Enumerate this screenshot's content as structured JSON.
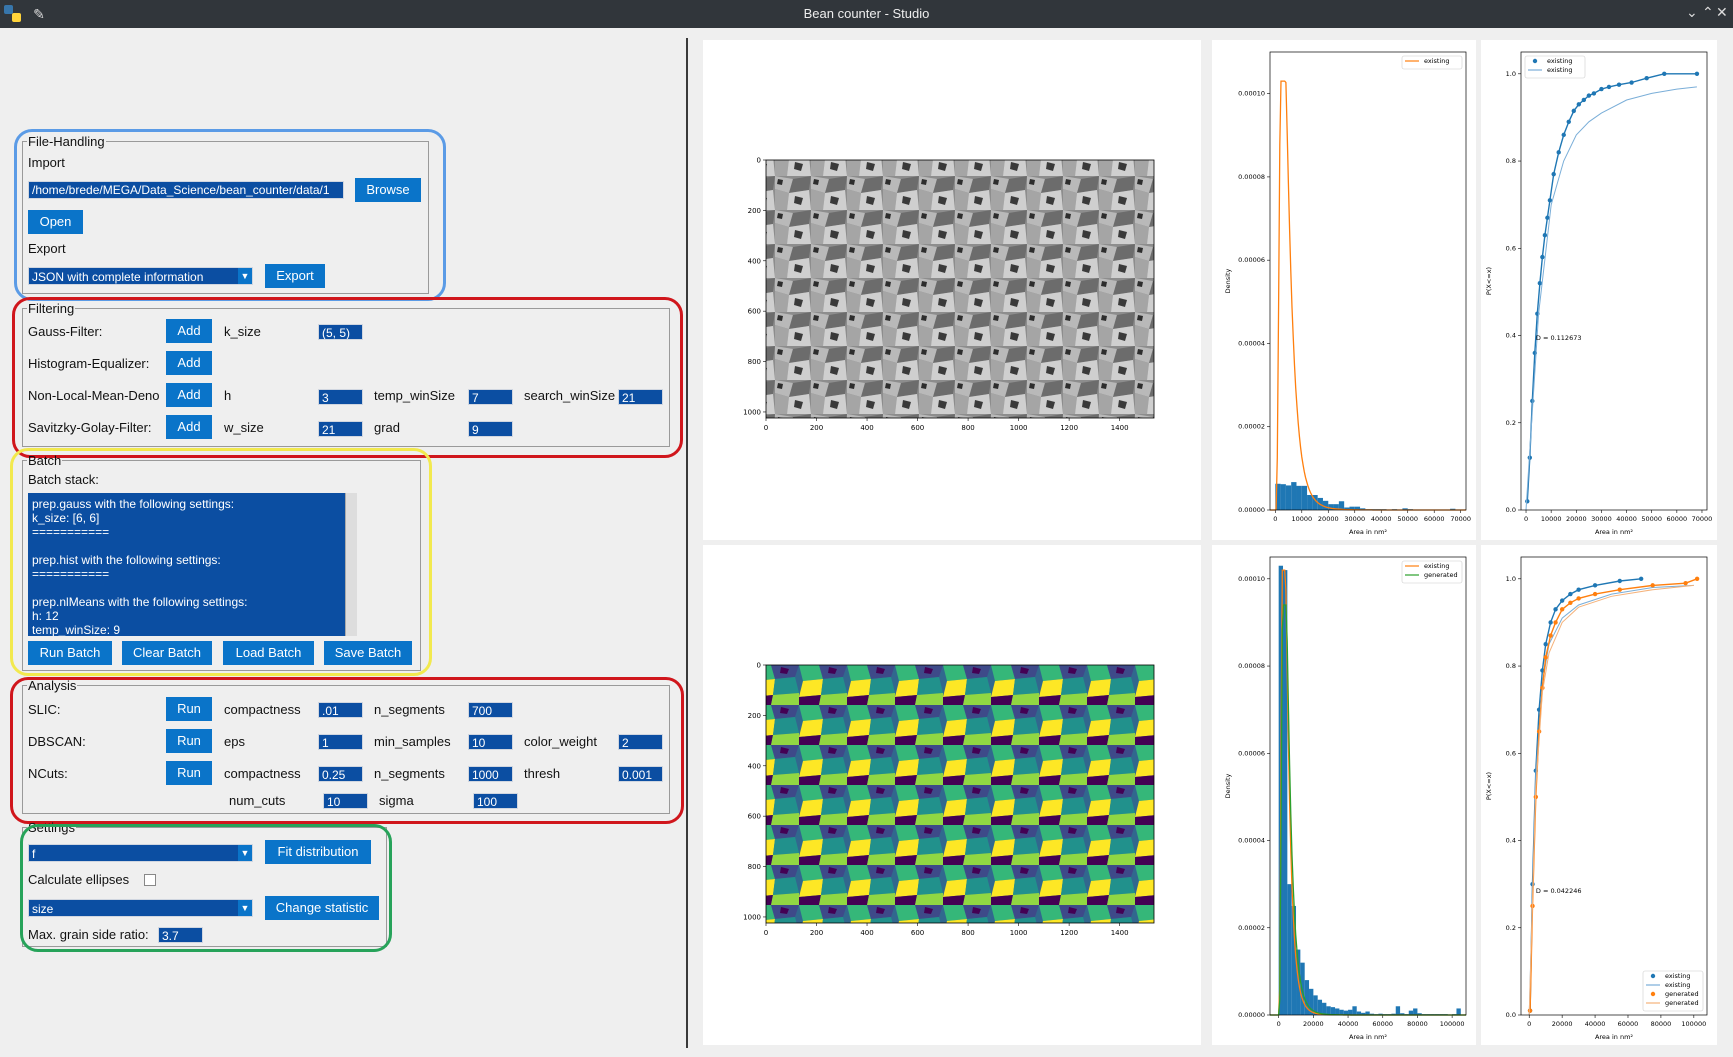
{
  "window": {
    "title": "Bean counter - Studio",
    "buttons": [
      "⌄",
      "⌃",
      "✕"
    ]
  },
  "file_handling": {
    "legend": "File-Handling",
    "import_label": "Import",
    "path_value": "/home/brede/MEGA/Data_Science/bean_counter/data/1",
    "browse": "Browse",
    "open": "Open",
    "export_label": "Export",
    "export_format": "JSON with complete information",
    "export": "Export"
  },
  "filtering": {
    "legend": "Filtering",
    "rows": [
      {
        "label": "Gauss-Filter:",
        "button": "Add",
        "p1": "k_size",
        "v1": "(5, 5)"
      },
      {
        "label": "Histogram-Equalizer:",
        "button": "Add"
      },
      {
        "label": "Non-Local-Mean-Deno",
        "button": "Add",
        "p1": "h",
        "v1": "3",
        "p2": "temp_winSize",
        "v2": "7",
        "p3": "search_winSize",
        "v3": "21"
      },
      {
        "label": "Savitzky-Golay-Filter:",
        "button": "Add",
        "p1": "w_size",
        "v1": "21",
        "p2": "grad",
        "v2": "9"
      }
    ]
  },
  "batch": {
    "legend": "Batch",
    "stack_label": "Batch stack:",
    "stack_text": "prep.gauss with the following settings:\nk_size: [6, 6]\n===========\n\nprep.hist with the following settings:\n===========\n\nprep.nlMeans with the following settings:\nh: 12\ntemp_winSize: 9",
    "run": "Run Batch",
    "clear": "Clear Batch",
    "load": "Load Batch",
    "save": "Save Batch"
  },
  "analysis": {
    "legend": "Analysis",
    "slic": {
      "label": "SLIC:",
      "button": "Run",
      "p1": "compactness",
      "v1": ".01",
      "p2": "n_segments",
      "v2": "700"
    },
    "dbscan": {
      "label": "DBSCAN:",
      "button": "Run",
      "p1": "eps",
      "v1": "1",
      "p2": "min_samples",
      "v2": "10",
      "p3": "color_weight",
      "v3": "2"
    },
    "ncuts": {
      "label": "NCuts:",
      "button": "Run",
      "p1": "compactness",
      "v1": "0.25",
      "p2": "n_segments",
      "v2": "1000",
      "p3": "thresh",
      "v3": "0.001",
      "p4": "num_cuts",
      "v4": "10",
      "p5": "sigma",
      "v5": "100"
    }
  },
  "settings": {
    "legend": "Settings",
    "dist_value": "f",
    "fit": "Fit distribution",
    "ellipses_label": "Calculate ellipses",
    "ellipses_checked": false,
    "stat_value": "size",
    "change_stat": "Change statistic",
    "ratio_label": "Max. grain side ratio:",
    "ratio_value": "3.7"
  },
  "colors": {
    "orange": "#ff7f0e",
    "blue": "#1f77b4",
    "green": "#2ca02c",
    "button": "#0a74c9",
    "field": "#0b4ea2"
  },
  "image_top": {
    "xticks": [
      "0",
      "200",
      "400",
      "600",
      "800",
      "1000",
      "1200",
      "1400"
    ],
    "yticks": [
      "0",
      "200",
      "400",
      "600",
      "800",
      "1000"
    ]
  },
  "image_bottom": {
    "xticks": [
      "0",
      "200",
      "400",
      "600",
      "800",
      "1000",
      "1200",
      "1400"
    ],
    "yticks": [
      "0",
      "200",
      "400",
      "600",
      "800",
      "1000"
    ]
  },
  "chart_data": [
    {
      "type": "bar",
      "id": "hist-top",
      "xlabel": "Area in nm²",
      "ylabel": "Density",
      "xlim": [
        -2000,
        72000
      ],
      "ylim": [
        0,
        0.00011
      ],
      "xticks": [
        "0",
        "10000",
        "20000",
        "30000",
        "40000",
        "50000",
        "60000",
        "70000"
      ],
      "yticks": [
        "0.00000",
        "0.00002",
        "0.00004",
        "0.00006",
        "0.00008",
        "0.00010"
      ],
      "legend": [
        "existing"
      ],
      "bin_edges": [
        0,
        2000,
        4000,
        6000,
        8000,
        10000,
        12000,
        14000,
        16000,
        18000,
        20000,
        22000,
        24000,
        26000,
        28000,
        30000,
        32000,
        34000,
        36000,
        38000,
        40000,
        42000,
        44000,
        46000,
        48000,
        50000,
        52000,
        54000,
        56000,
        58000,
        60000,
        62000,
        64000,
        66000,
        68000
      ],
      "values": [
        6.3e-06,
        6.2e-06,
        5.9e-06,
        6.7e-06,
        5.8e-06,
        5.8e-06,
        3.6e-06,
        3.6e-06,
        2.9e-06,
        2.2e-06,
        1.4e-06,
        1.4e-06,
        2.1e-06,
        6e-07,
        8e-07,
        8e-07,
        4e-07,
        2e-07,
        2e-07,
        2e-07,
        2e-07,
        0,
        2e-07,
        1e-07,
        4e-07,
        2e-07,
        0,
        0,
        0,
        0,
        0,
        0,
        0,
        3e-07
      ],
      "series": [
        {
          "name": "existing",
          "fit_peak_x": 4000,
          "fit_peak_y": 0.000103
        }
      ]
    },
    {
      "type": "scatter",
      "id": "cdf-top",
      "xlabel": "Area in nm²",
      "ylabel": "P(X<=x)",
      "xlim": [
        -2000,
        72000
      ],
      "ylim": [
        0,
        1.05
      ],
      "xticks": [
        "0",
        "10000",
        "20000",
        "30000",
        "40000",
        "50000",
        "60000",
        "70000"
      ],
      "yticks": [
        "0.0",
        "0.2",
        "0.4",
        "0.6",
        "0.8",
        "1.0"
      ],
      "legend": [
        "existing",
        "existing"
      ],
      "annotation": "D = 0.112673",
      "series": [
        {
          "name": "existing",
          "x": [
            500,
            1500,
            2500,
            3500,
            4500,
            5500,
            6500,
            7500,
            8500,
            9500,
            11000,
            13000,
            15000,
            17000,
            19000,
            21000,
            23000,
            25000,
            27000,
            30000,
            33000,
            37000,
            42000,
            48000,
            55000,
            68000
          ],
          "y": [
            0.02,
            0.12,
            0.25,
            0.36,
            0.45,
            0.52,
            0.58,
            0.63,
            0.67,
            0.71,
            0.77,
            0.82,
            0.86,
            0.89,
            0.915,
            0.93,
            0.94,
            0.95,
            0.955,
            0.965,
            0.97,
            0.975,
            0.98,
            0.99,
            1.0,
            1.0
          ]
        },
        {
          "name": "existing",
          "x": [
            0,
            5000,
            10000,
            15000,
            20000,
            25000,
            30000,
            40000,
            50000,
            60000,
            68000
          ],
          "y": [
            0.0,
            0.45,
            0.7,
            0.8,
            0.86,
            0.89,
            0.91,
            0.94,
            0.955,
            0.965,
            0.97
          ]
        }
      ]
    },
    {
      "type": "bar",
      "id": "hist-bottom",
      "xlabel": "Area in nm²",
      "ylabel": "Density",
      "xlim": [
        -5000,
        108000
      ],
      "ylim": [
        0,
        0.000105
      ],
      "xticks": [
        "0",
        "20000",
        "40000",
        "60000",
        "80000",
        "100000"
      ],
      "yticks": [
        "0.00000",
        "0.00002",
        "0.00004",
        "0.00006",
        "0.00008",
        "0.00010"
      ],
      "legend": [
        "existing",
        "generated"
      ],
      "bin_edges": [
        0,
        2500,
        5000,
        7500,
        10000,
        12500,
        15000,
        17500,
        20000,
        22500,
        25000,
        27500,
        30000,
        32500,
        35000,
        37500,
        40000,
        42500,
        45000,
        47500,
        50000,
        52500,
        55000,
        57500,
        60000,
        62500,
        65000,
        67500,
        70000,
        72500,
        75000,
        77500,
        80000,
        82500,
        85000,
        87500,
        90000,
        92500,
        95000,
        97500,
        100000,
        102500
      ],
      "values": [
        0.000103,
        0.000102,
        3e-05,
        2.5e-05,
        1.5e-05,
        1.2e-05,
        8e-06,
        6e-06,
        4.5e-06,
        3.5e-06,
        2.8e-06,
        2e-06,
        1.8e-06,
        1.5e-06,
        1.2e-06,
        1e-06,
        1.2e-06,
        2e-06,
        8e-07,
        5e-07,
        8e-07,
        3e-07,
        2e-07,
        3e-07,
        2e-07,
        2e-07,
        3e-07,
        2e-06,
        4e-07,
        2e-07,
        1e-06,
        1.5e-06,
        4e-07,
        2e-07,
        2e-07,
        2e-07,
        2e-07,
        2e-07,
        2e-07,
        0,
        2e-07,
        1.5e-06
      ],
      "series": [
        {
          "name": "existing",
          "fit_peak_x": 4000,
          "fit_peak_y": 0.000102
        },
        {
          "name": "generated",
          "fit_peak_x": 4500,
          "fit_peak_y": 9.4e-05
        }
      ]
    },
    {
      "type": "scatter",
      "id": "cdf-bottom",
      "xlabel": "Area in nm²",
      "ylabel": "P(X<=x)",
      "xlim": [
        -5000,
        108000
      ],
      "ylim": [
        0,
        1.05
      ],
      "xticks": [
        "0",
        "20000",
        "40000",
        "60000",
        "80000",
        "100000"
      ],
      "yticks": [
        "0.0",
        "0.2",
        "0.4",
        "0.6",
        "0.8",
        "1.0"
      ],
      "legend": [
        "existing",
        "existing",
        "generated",
        "generated"
      ],
      "annotation": "D = 0.042246",
      "series": [
        {
          "name": "existing",
          "x": [
            500,
            2000,
            4000,
            6000,
            8000,
            10000,
            13000,
            16000,
            20000,
            25000,
            30000,
            40000,
            55000,
            68000
          ],
          "y": [
            0.01,
            0.3,
            0.56,
            0.7,
            0.79,
            0.85,
            0.9,
            0.93,
            0.95,
            0.965,
            0.975,
            0.985,
            0.995,
            1.0
          ]
        },
        {
          "name": "existing",
          "x": [
            0,
            4000,
            8000,
            12000,
            20000,
            30000,
            50000,
            75000,
            100000
          ],
          "y": [
            0.0,
            0.55,
            0.76,
            0.85,
            0.91,
            0.94,
            0.965,
            0.98,
            0.985
          ]
        },
        {
          "name": "generated",
          "x": [
            500,
            2000,
            4000,
            6000,
            8000,
            10000,
            13000,
            16000,
            20000,
            25000,
            30000,
            40000,
            55000,
            75000,
            95000,
            102000
          ],
          "y": [
            0.01,
            0.25,
            0.5,
            0.65,
            0.75,
            0.82,
            0.87,
            0.9,
            0.93,
            0.945,
            0.955,
            0.965,
            0.975,
            0.985,
            0.99,
            1.0
          ]
        },
        {
          "name": "generated",
          "x": [
            0,
            4000,
            8000,
            12000,
            20000,
            30000,
            50000,
            75000,
            100000
          ],
          "y": [
            0.0,
            0.52,
            0.74,
            0.83,
            0.9,
            0.935,
            0.96,
            0.975,
            0.985
          ]
        }
      ]
    }
  ]
}
